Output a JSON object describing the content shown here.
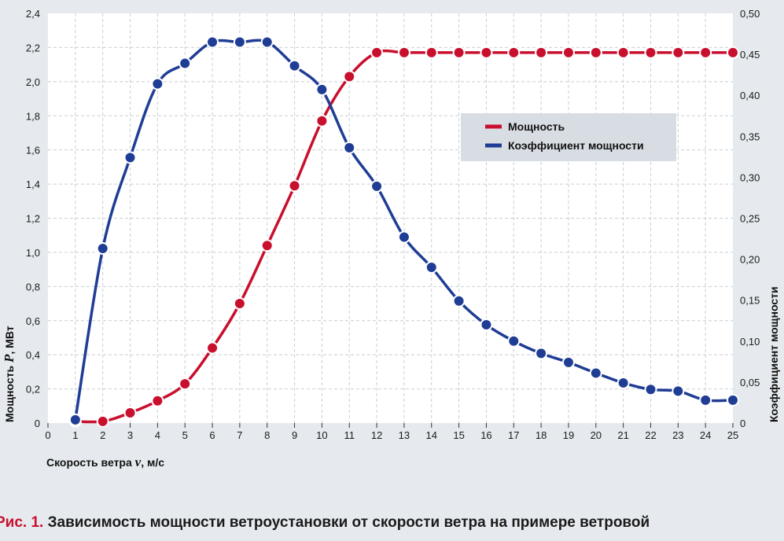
{
  "chart_data": {
    "type": "line",
    "x": [
      1,
      2,
      3,
      4,
      5,
      6,
      7,
      8,
      9,
      10,
      11,
      12,
      13,
      14,
      15,
      16,
      17,
      18,
      19,
      20,
      21,
      22,
      23,
      24,
      25
    ],
    "xlabel_prefix": "Скорость ветра ",
    "xlabel_var": "v",
    "xlabel_suffix": ", м/с",
    "ylabel_prefix": "Мощность ",
    "ylabel_var": "P",
    "ylabel_suffix": ", МВт",
    "y2label": "Коэффициент мощности",
    "xlim": [
      0,
      25
    ],
    "ylim": [
      0,
      2.4
    ],
    "y2lim": [
      0,
      0.5
    ],
    "x_ticks": [
      "0",
      "1",
      "2",
      "3",
      "4",
      "5",
      "6",
      "7",
      "8",
      "9",
      "10",
      "11",
      "12",
      "13",
      "14",
      "15",
      "16",
      "17",
      "18",
      "19",
      "20",
      "21",
      "22",
      "23",
      "24",
      "25"
    ],
    "y_ticks": [
      "0",
      "0,2",
      "0,4",
      "0,6",
      "0,8",
      "1,0",
      "1,2",
      "1,4",
      "1,6",
      "1,8",
      "2,0",
      "2,2",
      "2,4"
    ],
    "y2_ticks": [
      "0",
      "0,05",
      "0,10",
      "0,15",
      "0,20",
      "0,25",
      "0,30",
      "0,35",
      "0,40",
      "0,45",
      "0,50"
    ],
    "grid": true,
    "legend_position": "upper-right",
    "series": [
      {
        "name": "Мощность",
        "color": "#c8102e",
        "axis": "left",
        "values": [
          0.01,
          0.01,
          0.06,
          0.13,
          0.23,
          0.44,
          0.7,
          1.04,
          1.39,
          1.77,
          2.03,
          2.17,
          2.17,
          2.17,
          2.17,
          2.17,
          2.17,
          2.17,
          2.17,
          2.17,
          2.17,
          2.17,
          2.17,
          2.17,
          2.17
        ]
      },
      {
        "name": "Коэффициент мощности",
        "color": "#1f3d95",
        "axis": "right",
        "values": [
          0.004,
          0.213,
          0.324,
          0.414,
          0.439,
          0.465,
          0.465,
          0.465,
          0.436,
          0.407,
          0.336,
          0.289,
          0.227,
          0.19,
          0.149,
          0.12,
          0.1,
          0.085,
          0.074,
          0.061,
          0.049,
          0.041,
          0.039,
          0.028,
          0.028
        ]
      }
    ]
  },
  "caption": {
    "label": "Рис. 1.",
    "text": " Зависимость мощности ветроустановки от скорости ветра на примере ветровой"
  }
}
